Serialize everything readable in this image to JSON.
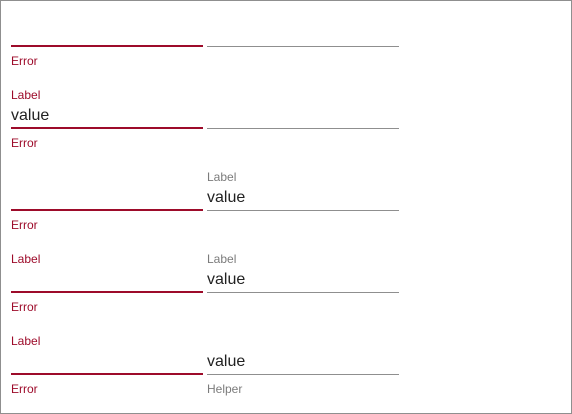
{
  "colors": {
    "error": "#9d0b2a",
    "normal_line": "#8f8f8f",
    "text": "#222222",
    "muted": "#7b7b7b"
  },
  "rows": [
    {
      "left": {
        "label": "",
        "value": "",
        "message": "Error",
        "state": "error"
      },
      "right": {
        "label": "",
        "value": "",
        "message": "",
        "state": "normal"
      }
    },
    {
      "left": {
        "label": "Label",
        "value": "value",
        "message": "Error",
        "state": "error"
      },
      "right": {
        "label": "",
        "value": "",
        "message": "",
        "state": "normal"
      }
    },
    {
      "left": {
        "label": "",
        "value": "",
        "message": "Error",
        "state": "error"
      },
      "right": {
        "label": "Label",
        "value": "value",
        "message": "",
        "state": "normal"
      }
    },
    {
      "left": {
        "label": "Label",
        "value": "",
        "message": "Error",
        "state": "error"
      },
      "right": {
        "label": "Label",
        "value": "value",
        "message": "",
        "state": "normal"
      }
    },
    {
      "left": {
        "label": "Label",
        "value": "",
        "message": "Error",
        "state": "error"
      },
      "right": {
        "label": "",
        "value": "value",
        "message": "Helper",
        "state": "normal"
      }
    }
  ]
}
